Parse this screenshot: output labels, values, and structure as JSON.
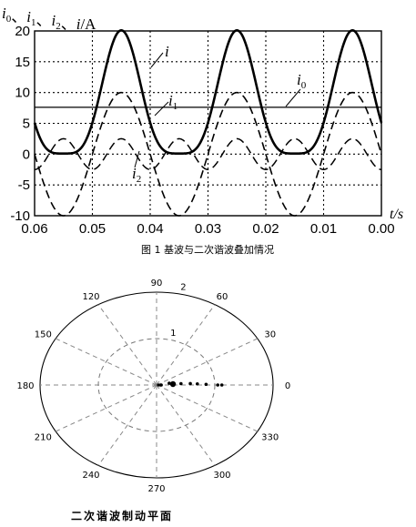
{
  "chart_data": [
    {
      "type": "line",
      "ylabel": "i0、i1、i2、i/A",
      "xlabel": "t/s",
      "xlim": [
        0.06,
        0.0
      ],
      "ylim": [
        -10,
        20
      ],
      "x_ticks": [
        "0.06",
        "0.05",
        "0.04",
        "0.03",
        "0.02",
        "0.01",
        "0.00"
      ],
      "y_ticks": [
        "20",
        "15",
        "10",
        "5",
        "0",
        "-5",
        "-10"
      ],
      "grid": true,
      "series": [
        {
          "name": "i",
          "style": "solid-thick",
          "formula": "i0 + i1 + i2, clipped at 0"
        },
        {
          "name": "i0",
          "style": "solid-thin",
          "value": 7.6
        },
        {
          "name": "i1",
          "style": "dashed",
          "amplitude": 10,
          "period": 0.02,
          "peaks_at": [
            0.045,
            0.025,
            0.005
          ]
        },
        {
          "name": "i2",
          "style": "dashed",
          "amplitude": 2.5,
          "period": 0.01
        }
      ],
      "caption": "图 1 基波与二次谐波叠加情况"
    },
    {
      "type": "scatter",
      "coordinate": "polar",
      "r_ticks": [
        "1",
        "2"
      ],
      "angle_ticks": [
        "0",
        "30",
        "60",
        "90",
        "120",
        "150",
        "180",
        "210",
        "240",
        "270",
        "300",
        "330"
      ],
      "points": [
        {
          "r": 0.08,
          "theta": 0
        },
        {
          "r": 0.22,
          "theta": 10
        },
        {
          "r": 0.3,
          "theta": 6
        },
        {
          "r": 0.42,
          "theta": 4
        },
        {
          "r": 0.58,
          "theta": 3
        },
        {
          "r": 0.7,
          "theta": 2
        },
        {
          "r": 0.85,
          "theta": 1
        },
        {
          "r": 1.05,
          "theta": 0
        },
        {
          "r": 1.12,
          "theta": 0
        }
      ],
      "caption": "二次谐波制动平面"
    }
  ]
}
